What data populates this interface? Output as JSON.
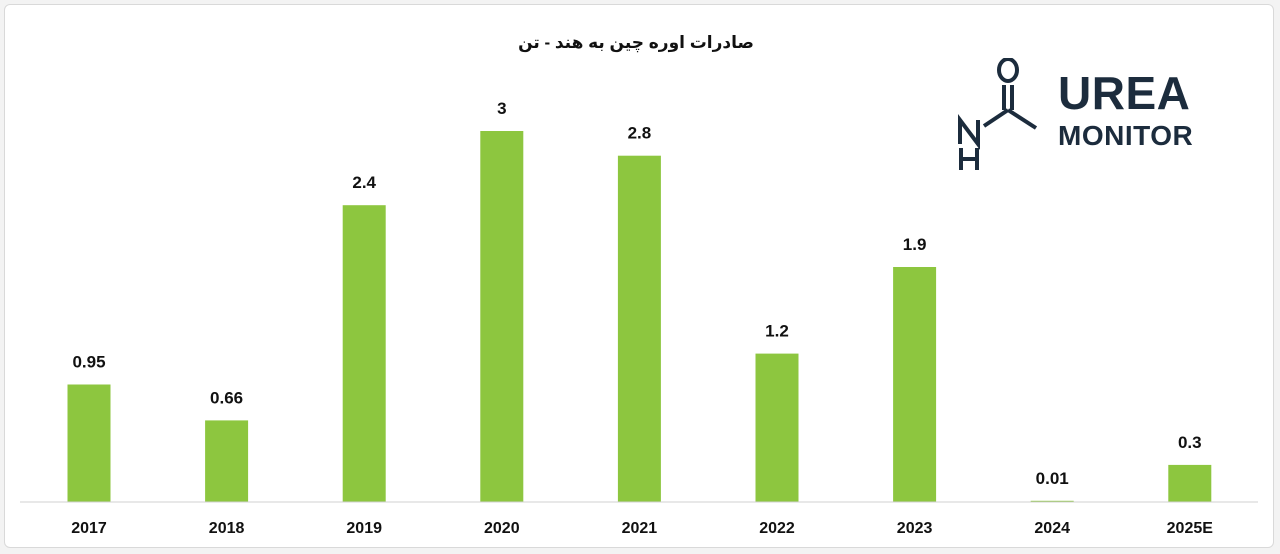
{
  "chart_data": {
    "type": "bar",
    "title": "صادرات اوره چین به هند - تن",
    "categories": [
      "2017",
      "2018",
      "2019",
      "2020",
      "2021",
      "2022",
      "2023",
      "2024",
      "2025E"
    ],
    "values": [
      0.95,
      0.66,
      2.4,
      3,
      2.8,
      1.2,
      1.9,
      0.01,
      0.3
    ],
    "value_labels": [
      "0.95",
      "0.66",
      "2.4",
      "3",
      "2.8",
      "1.2",
      "1.9",
      "0.01",
      "0.3"
    ],
    "ylim": [
      0,
      3
    ],
    "grid": false,
    "bar_color": "#8dc63f"
  },
  "logo": {
    "line1": "UREA",
    "line2": "MONITOR",
    "color": "#1c2c3d"
  }
}
